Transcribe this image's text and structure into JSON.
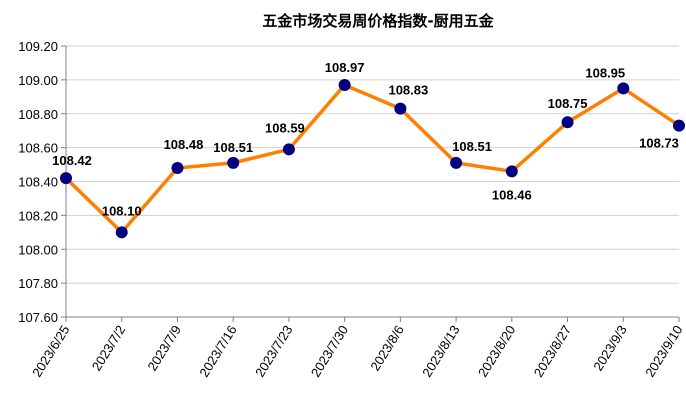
{
  "chart_data": {
    "type": "line",
    "title": "五金市场交易周价格指数-厨用五金",
    "xlabel": "",
    "ylabel": "",
    "categories": [
      "2023/6/25",
      "2023/7/2",
      "2023/7/9",
      "2023/7/16",
      "2023/7/23",
      "2023/7/30",
      "2023/8/6",
      "2023/8/13",
      "2023/8/20",
      "2023/8/27",
      "2023/9/3",
      "2023/9/10"
    ],
    "series": [
      {
        "values": [
          108.42,
          108.1,
          108.48,
          108.51,
          108.59,
          108.97,
          108.83,
          108.51,
          108.46,
          108.75,
          108.95,
          108.73
        ]
      }
    ],
    "data_labels": [
      "108.42",
      "108.10",
      "108.48",
      "108.51",
      "108.59",
      "108.97",
      "108.83",
      "108.51",
      "108.46",
      "108.75",
      "108.95",
      "108.73"
    ],
    "y_ticks": [
      "107.60",
      "107.80",
      "108.00",
      "108.20",
      "108.40",
      "108.60",
      "108.80",
      "109.00",
      "109.20"
    ],
    "ylim": [
      107.6,
      109.2
    ],
    "grid": true,
    "legend": "none",
    "colors": {
      "line": "#ff7f00",
      "marker": "#000080",
      "grid": "#d0d0d0",
      "axis": "#808080"
    }
  }
}
